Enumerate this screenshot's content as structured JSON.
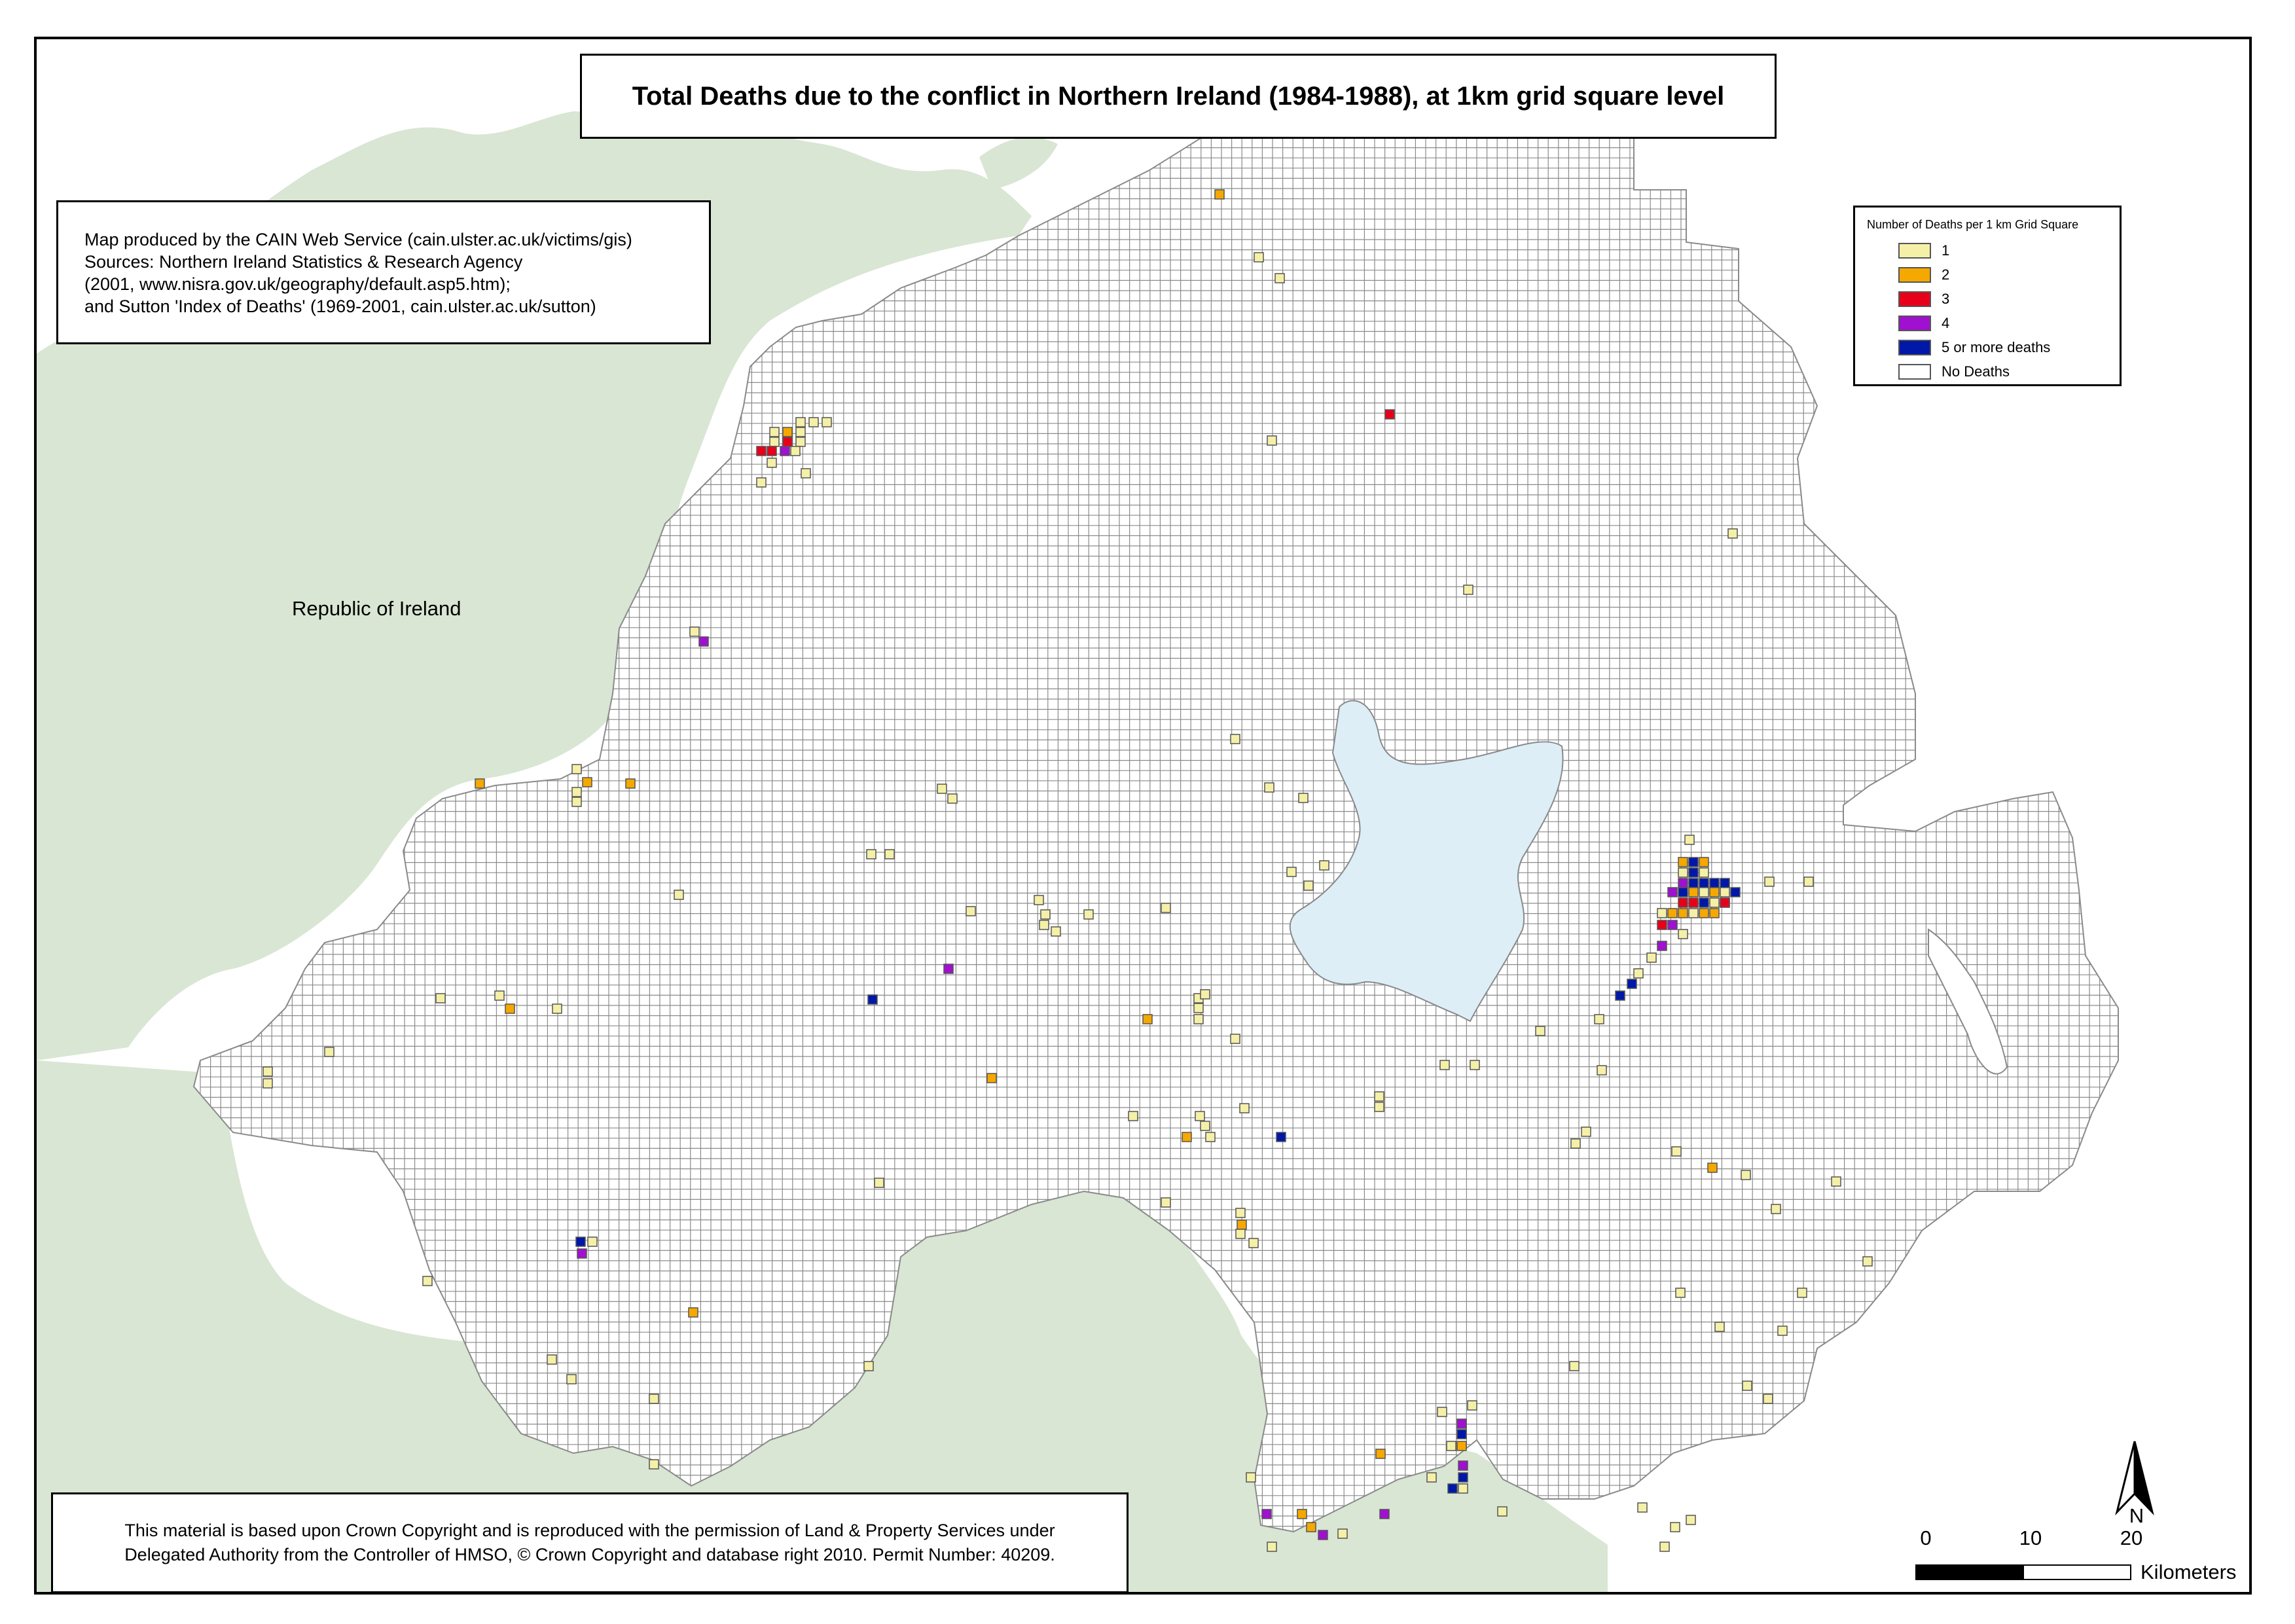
{
  "title": "Total Deaths due to the conflict in Northern Ireland (1984-1988), at 1km grid square level",
  "credit": {
    "lines": [
      "Map produced by the CAIN Web Service (cain.ulster.ac.uk/victims/gis)",
      "Sources: Northern Ireland Statistics & Research Agency",
      "(2001, www.nisra.gov.uk/geography/default.asp5.htm);",
      "and Sutton 'Index of Deaths' (1969-2001, cain.ulster.ac.uk/sutton)"
    ]
  },
  "copyright": {
    "lines": [
      "This material is based upon Crown Copyright and is reproduced with the permission of Land & Property Services under",
      "Delegated Authority from the Controller of HMSO, © Crown Copyright and database right 2010. Permit Number: 40209."
    ]
  },
  "labels": {
    "republic": "Republic of Ireland"
  },
  "legend": {
    "title": "Number of Deaths per 1 km Grid Square",
    "items": [
      {
        "label": "1",
        "color": "#f5f0a8"
      },
      {
        "label": "2",
        "color": "#f5a800"
      },
      {
        "label": "3",
        "color": "#e8001a"
      },
      {
        "label": "4",
        "color": "#a010d0"
      },
      {
        "label": "5 or more deaths",
        "color": "#0018a8"
      },
      {
        "label": "No Deaths",
        "color": "#ffffff"
      }
    ]
  },
  "north": {
    "label": "N"
  },
  "scale": {
    "ticks": [
      "0",
      "10",
      "20"
    ],
    "unit": "Kilometers"
  },
  "colors": {
    "land_background": "#d8e6d3",
    "lough": "#ddeef7",
    "grid_line": "#8a8a8a"
  }
}
